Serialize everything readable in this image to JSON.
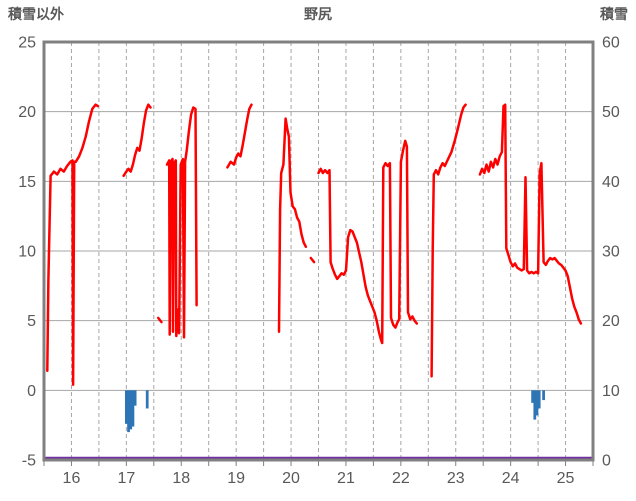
{
  "chart_data": {
    "type": "line",
    "title": "野尻",
    "left_axis": {
      "label": "積雪以外",
      "min": -5,
      "max": 25,
      "step": 5,
      "ticks": [
        25,
        20,
        15,
        10,
        5,
        0,
        -5
      ]
    },
    "right_axis": {
      "label": "積雪",
      "min": 0,
      "max": 60,
      "step": 10,
      "ticks": [
        60,
        50,
        40,
        30,
        20,
        10,
        0
      ]
    },
    "x_axis": {
      "min": 15.5,
      "max": 25.5,
      "grid_step": 0.5,
      "tick_labels": [
        16,
        17,
        18,
        19,
        20,
        21,
        22,
        23,
        24,
        25
      ]
    },
    "colors": {
      "red_line": "#FF0000",
      "blue_bars": "#2E75B6",
      "purple_baseline": "#7030A0",
      "gridline": "#A6A6A6",
      "border": "#808080",
      "text": "#595959",
      "background": "#FFFFFF"
    },
    "series": [
      {
        "name": "red-line",
        "type": "line",
        "axis": "left",
        "color": "#FF0000",
        "segments": [
          [
            [
              15.56,
              1.4
            ],
            [
              15.58,
              8.0
            ],
            [
              15.62,
              15.4
            ],
            [
              15.68,
              15.7
            ],
            [
              15.74,
              15.5
            ],
            [
              15.8,
              15.9
            ],
            [
              15.86,
              15.7
            ],
            [
              15.92,
              16.1
            ],
            [
              15.98,
              16.4
            ],
            [
              16.02,
              16.5
            ],
            [
              16.03,
              0.4
            ],
            [
              16.05,
              16.4
            ],
            [
              16.08,
              16.4
            ],
            [
              16.14,
              16.8
            ],
            [
              16.2,
              17.4
            ],
            [
              16.26,
              18.2
            ],
            [
              16.32,
              19.3
            ],
            [
              16.38,
              20.2
            ],
            [
              16.44,
              20.5
            ],
            [
              16.48,
              20.4
            ]
          ],
          [
            [
              16.95,
              15.4
            ],
            [
              17.0,
              15.7
            ],
            [
              17.04,
              15.9
            ],
            [
              17.08,
              15.7
            ],
            [
              17.12,
              16.2
            ],
            [
              17.16,
              16.9
            ],
            [
              17.2,
              17.4
            ],
            [
              17.24,
              17.2
            ],
            [
              17.28,
              18.1
            ],
            [
              17.32,
              19.2
            ],
            [
              17.36,
              20.1
            ],
            [
              17.4,
              20.5
            ],
            [
              17.44,
              20.3
            ]
          ],
          [
            [
              17.58,
              5.2
            ],
            [
              17.64,
              4.9
            ]
          ],
          [
            [
              17.74,
              16.2
            ],
            [
              17.78,
              16.5
            ],
            [
              17.79,
              4.0
            ],
            [
              17.81,
              16.4
            ],
            [
              17.84,
              16.6
            ],
            [
              17.85,
              4.2
            ],
            [
              17.87,
              16.3
            ],
            [
              17.9,
              16.5
            ],
            [
              17.91,
              3.9
            ],
            [
              17.94,
              5.8
            ],
            [
              17.96,
              4.1
            ],
            [
              17.99,
              16.2
            ],
            [
              18.03,
              16.6
            ],
            [
              18.05,
              3.8
            ],
            [
              18.07,
              16.4
            ],
            [
              18.1,
              17.2
            ],
            [
              18.14,
              18.6
            ],
            [
              18.18,
              19.8
            ],
            [
              18.22,
              20.3
            ],
            [
              18.26,
              20.2
            ],
            [
              18.28,
              6.1
            ]
          ],
          [
            [
              18.84,
              16.0
            ],
            [
              18.9,
              16.4
            ],
            [
              18.96,
              16.2
            ],
            [
              19.0,
              16.7
            ],
            [
              19.04,
              17.0
            ],
            [
              19.08,
              16.8
            ],
            [
              19.12,
              17.6
            ],
            [
              19.16,
              18.5
            ],
            [
              19.2,
              19.4
            ],
            [
              19.24,
              20.2
            ],
            [
              19.28,
              20.5
            ]
          ],
          [
            [
              19.78,
              4.2
            ],
            [
              19.8,
              13.0
            ],
            [
              19.82,
              15.6
            ],
            [
              19.86,
              16.2
            ],
            [
              19.9,
              19.5
            ],
            [
              19.93,
              18.8
            ],
            [
              19.96,
              18.2
            ],
            [
              19.99,
              14.2
            ],
            [
              20.03,
              13.2
            ],
            [
              20.07,
              13.0
            ],
            [
              20.11,
              12.4
            ],
            [
              20.15,
              12.1
            ],
            [
              20.19,
              11.2
            ],
            [
              20.23,
              10.6
            ],
            [
              20.27,
              10.3
            ]
          ],
          [
            [
              20.36,
              9.5
            ],
            [
              20.42,
              9.2
            ]
          ],
          [
            [
              20.5,
              15.6
            ],
            [
              20.54,
              15.9
            ],
            [
              20.58,
              15.6
            ],
            [
              20.62,
              15.8
            ],
            [
              20.66,
              15.6
            ],
            [
              20.7,
              15.8
            ],
            [
              20.72,
              9.2
            ],
            [
              20.76,
              8.7
            ],
            [
              20.8,
              8.3
            ],
            [
              20.84,
              8.0
            ],
            [
              20.88,
              8.2
            ],
            [
              20.92,
              8.4
            ],
            [
              20.96,
              8.3
            ],
            [
              21.0,
              8.6
            ],
            [
              21.04,
              11.0
            ],
            [
              21.08,
              11.5
            ],
            [
              21.12,
              11.4
            ],
            [
              21.16,
              11.0
            ],
            [
              21.2,
              10.6
            ],
            [
              21.24,
              9.9
            ],
            [
              21.28,
              9.2
            ],
            [
              21.32,
              8.3
            ],
            [
              21.36,
              7.4
            ],
            [
              21.4,
              6.8
            ],
            [
              21.44,
              6.4
            ],
            [
              21.48,
              6.0
            ],
            [
              21.52,
              5.6
            ],
            [
              21.56,
              5.0
            ],
            [
              21.6,
              4.2
            ],
            [
              21.64,
              3.6
            ],
            [
              21.66,
              3.4
            ],
            [
              21.68,
              16.0
            ],
            [
              21.72,
              16.3
            ],
            [
              21.76,
              16.1
            ],
            [
              21.8,
              16.3
            ],
            [
              21.82,
              5.2
            ],
            [
              21.86,
              4.7
            ],
            [
              21.9,
              4.5
            ],
            [
              21.94,
              4.9
            ],
            [
              21.97,
              5.1
            ],
            [
              22.0,
              16.4
            ],
            [
              22.04,
              17.2
            ],
            [
              22.08,
              17.9
            ],
            [
              22.11,
              17.5
            ],
            [
              22.13,
              5.6
            ],
            [
              22.17,
              5.1
            ],
            [
              22.21,
              5.3
            ],
            [
              22.25,
              5.0
            ],
            [
              22.29,
              4.8
            ]
          ],
          [
            [
              22.56,
              1.0
            ],
            [
              22.58,
              10.0
            ],
            [
              22.6,
              15.5
            ],
            [
              22.64,
              15.8
            ],
            [
              22.68,
              15.5
            ],
            [
              22.72,
              16.0
            ],
            [
              22.76,
              16.3
            ],
            [
              22.8,
              16.1
            ],
            [
              22.86,
              16.6
            ],
            [
              22.92,
              17.1
            ],
            [
              22.98,
              17.9
            ],
            [
              23.04,
              18.8
            ],
            [
              23.1,
              19.8
            ],
            [
              23.14,
              20.3
            ],
            [
              23.18,
              20.5
            ]
          ],
          [
            [
              23.44,
              15.5
            ],
            [
              23.48,
              15.9
            ],
            [
              23.52,
              15.6
            ],
            [
              23.56,
              16.2
            ],
            [
              23.6,
              15.7
            ],
            [
              23.64,
              16.4
            ],
            [
              23.68,
              16.0
            ],
            [
              23.72,
              16.6
            ],
            [
              23.76,
              16.2
            ],
            [
              23.8,
              16.8
            ],
            [
              23.84,
              17.1
            ],
            [
              23.87,
              20.4
            ],
            [
              23.9,
              20.5
            ],
            [
              23.92,
              10.2
            ],
            [
              23.96,
              9.7
            ],
            [
              24.0,
              9.2
            ],
            [
              24.04,
              8.9
            ],
            [
              24.08,
              9.1
            ],
            [
              24.12,
              8.8
            ],
            [
              24.16,
              8.7
            ],
            [
              24.2,
              8.6
            ],
            [
              24.24,
              8.7
            ],
            [
              24.27,
              15.3
            ],
            [
              24.3,
              8.6
            ],
            [
              24.34,
              8.4
            ],
            [
              24.38,
              8.5
            ],
            [
              24.42,
              8.4
            ],
            [
              24.46,
              8.5
            ],
            [
              24.5,
              8.4
            ],
            [
              24.53,
              15.6
            ],
            [
              24.56,
              16.3
            ],
            [
              24.6,
              9.2
            ],
            [
              24.64,
              9.0
            ],
            [
              24.68,
              9.3
            ],
            [
              24.72,
              9.5
            ],
            [
              24.76,
              9.4
            ],
            [
              24.8,
              9.5
            ],
            [
              24.84,
              9.3
            ],
            [
              24.88,
              9.1
            ],
            [
              24.92,
              9.0
            ],
            [
              24.96,
              8.8
            ],
            [
              25.0,
              8.6
            ],
            [
              25.04,
              8.2
            ],
            [
              25.08,
              7.4
            ],
            [
              25.12,
              6.6
            ],
            [
              25.16,
              6.0
            ],
            [
              25.2,
              5.6
            ],
            [
              25.24,
              5.1
            ],
            [
              25.28,
              4.8
            ]
          ]
        ]
      },
      {
        "name": "blue-bars",
        "type": "bar",
        "axis": "left",
        "color": "#2E75B6",
        "bar_width": 0.05,
        "points": [
          [
            17.0,
            -2.4
          ],
          [
            17.04,
            -3.0
          ],
          [
            17.08,
            -2.8
          ],
          [
            17.12,
            -2.6
          ],
          [
            17.16,
            -1.1
          ],
          [
            17.38,
            -1.3
          ],
          [
            24.4,
            -0.9
          ],
          [
            24.44,
            -2.1
          ],
          [
            24.48,
            -1.8
          ],
          [
            24.52,
            -1.3
          ],
          [
            24.6,
            -0.7
          ]
        ]
      },
      {
        "name": "purple-baseline",
        "type": "line",
        "axis": "left",
        "color": "#7030A0",
        "segments": [
          [
            [
              15.5,
              -5
            ],
            [
              25.5,
              -5
            ]
          ]
        ]
      }
    ]
  }
}
